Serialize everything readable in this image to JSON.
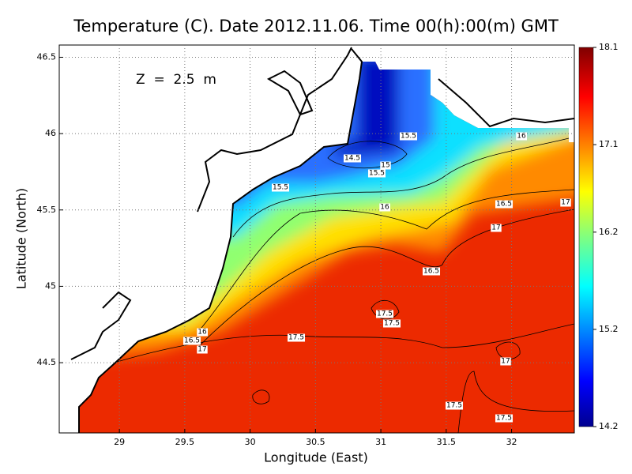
{
  "title": "Temperature (C). Date 2012.11.06. Time 00(h):00(m) GMT",
  "depth_label": "Z  =  2.5  m",
  "map": {
    "x_label": "Longitude (East)",
    "y_label": "Latitude (North)",
    "xlim": [
      28.54,
      32.48
    ],
    "ylim": [
      44.04,
      46.58
    ],
    "xticks": [
      29,
      29.5,
      30,
      30.5,
      31,
      31.5,
      32
    ],
    "yticks": [
      44.5,
      45,
      45.5,
      46,
      46.5
    ],
    "grid": true
  },
  "colorbar": {
    "clim": [
      14.2,
      18.1
    ],
    "ticks": [
      14.2,
      15.2,
      16.2,
      17.1,
      18.1
    ]
  },
  "contour_labels": [
    "15.5",
    "16",
    "14.5",
    "15",
    "15.5",
    "15.5",
    "16",
    "16.5",
    "17",
    "17",
    "16.5",
    "17.5",
    "17.5",
    "16",
    "16.5",
    "17",
    "17.5",
    "17",
    "17.5",
    "17.5"
  ]
}
